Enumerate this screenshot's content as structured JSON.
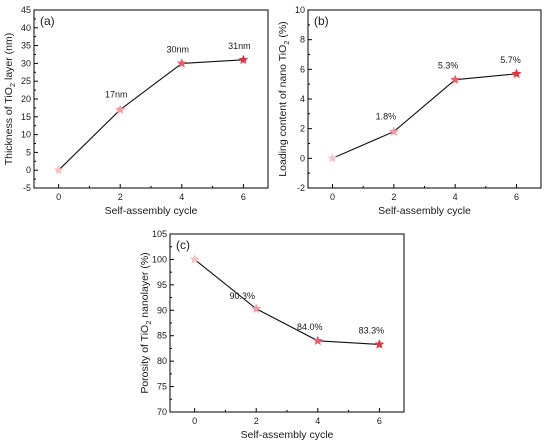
{
  "chart_data": [
    {
      "type": "line",
      "panel_label": "(a)",
      "xlabel": "Self-assembly cycle",
      "ylabel_parts": [
        "Thickness of TiO",
        "2",
        " layer (nm)"
      ],
      "x": [
        0,
        2,
        4,
        6
      ],
      "values": [
        0,
        17,
        30,
        31
      ],
      "data_labels": [
        "",
        "17nm",
        "30nm",
        "31nm"
      ],
      "xlim": [
        -0.8,
        6.8
      ],
      "ylim": [
        -5,
        45
      ],
      "xticks": [
        0,
        2,
        4,
        6
      ],
      "yticks": [
        -5,
        0,
        5,
        10,
        15,
        20,
        25,
        30,
        35,
        40,
        45
      ],
      "marker": "star",
      "marker_colors": [
        "#f7c2c6",
        "#f19aa2",
        "#ec5d6c",
        "#e8303f"
      ]
    },
    {
      "type": "line",
      "panel_label": "(b)",
      "xlabel": "Self-assembly cycle",
      "ylabel_parts": [
        "Loading content of nano TiO",
        "2",
        " (%)"
      ],
      "x": [
        0,
        2,
        4,
        6
      ],
      "values": [
        0,
        1.8,
        5.3,
        5.7
      ],
      "data_labels": [
        "",
        "1.8%",
        "5.3%",
        "5.7%"
      ],
      "xlim": [
        -0.8,
        6.8
      ],
      "ylim": [
        -2,
        10
      ],
      "xticks": [
        0,
        2,
        4,
        6
      ],
      "yticks": [
        -2,
        0,
        2,
        4,
        6,
        8,
        10
      ],
      "marker": "star",
      "marker_colors": [
        "#f7c2c6",
        "#f19aa2",
        "#ec5d6c",
        "#e8303f"
      ]
    },
    {
      "type": "line",
      "panel_label": "(c)",
      "xlabel": "Self-assembly  cycle",
      "ylabel_parts": [
        "Porosity of TiO",
        "2",
        " nanolayer (%)"
      ],
      "x": [
        0,
        2,
        4,
        6
      ],
      "values": [
        100,
        90.3,
        84.0,
        83.3
      ],
      "data_labels": [
        "",
        "90.3%",
        "84.0%",
        "83.3%"
      ],
      "xlim": [
        -0.8,
        6.8
      ],
      "ylim": [
        70,
        105
      ],
      "xticks": [
        0,
        2,
        4,
        6
      ],
      "yticks": [
        70,
        75,
        80,
        85,
        90,
        95,
        100,
        105
      ],
      "marker": "star",
      "marker_colors": [
        "#f7c2c6",
        "#f19aa2",
        "#ec5d6c",
        "#e8303f"
      ]
    }
  ]
}
